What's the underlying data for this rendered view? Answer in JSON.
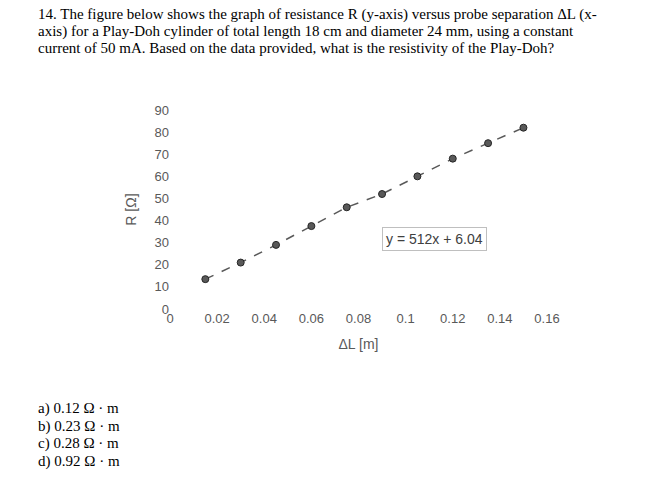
{
  "question": {
    "lines": [
      "14. The figure below shows the graph of resistance R (y-axis) versus probe separation ΔL (x-",
      "axis) for a Play-Doh cylinder of total length 18 cm and diameter 24 mm, using a constant",
      "current of 50 mA. Based on the data provided, what is the resistivity of the Play-Doh?"
    ]
  },
  "options": [
    "a)  0.12 Ω · m",
    "b)  0.23 Ω · m",
    "c)  0.28 Ω · m",
    "d)  0.92 Ω · m"
  ],
  "chart_data": {
    "type": "scatter",
    "xlabel": "ΔL [m]",
    "ylabel": "R [Ω]",
    "x": [
      0.015,
      0.03,
      0.045,
      0.06,
      0.075,
      0.09,
      0.105,
      0.12,
      0.135,
      0.15
    ],
    "values": [
      13.5,
      21,
      29,
      37.5,
      46,
      52,
      60,
      68,
      75,
      82
    ],
    "color": "#595959",
    "marker": "circle",
    "line_style": "dashed",
    "annotations": [
      "y = 512x + 6.04"
    ],
    "xlim": [
      0,
      0.16
    ],
    "xticks": [
      0,
      0.02,
      0.04,
      0.06,
      0.08,
      0.1,
      0.12,
      0.14,
      0.16
    ],
    "ylim": [
      0,
      90
    ],
    "yticks": [
      0,
      10,
      20,
      30,
      40,
      50,
      60,
      70,
      80,
      90
    ],
    "grid": false
  }
}
